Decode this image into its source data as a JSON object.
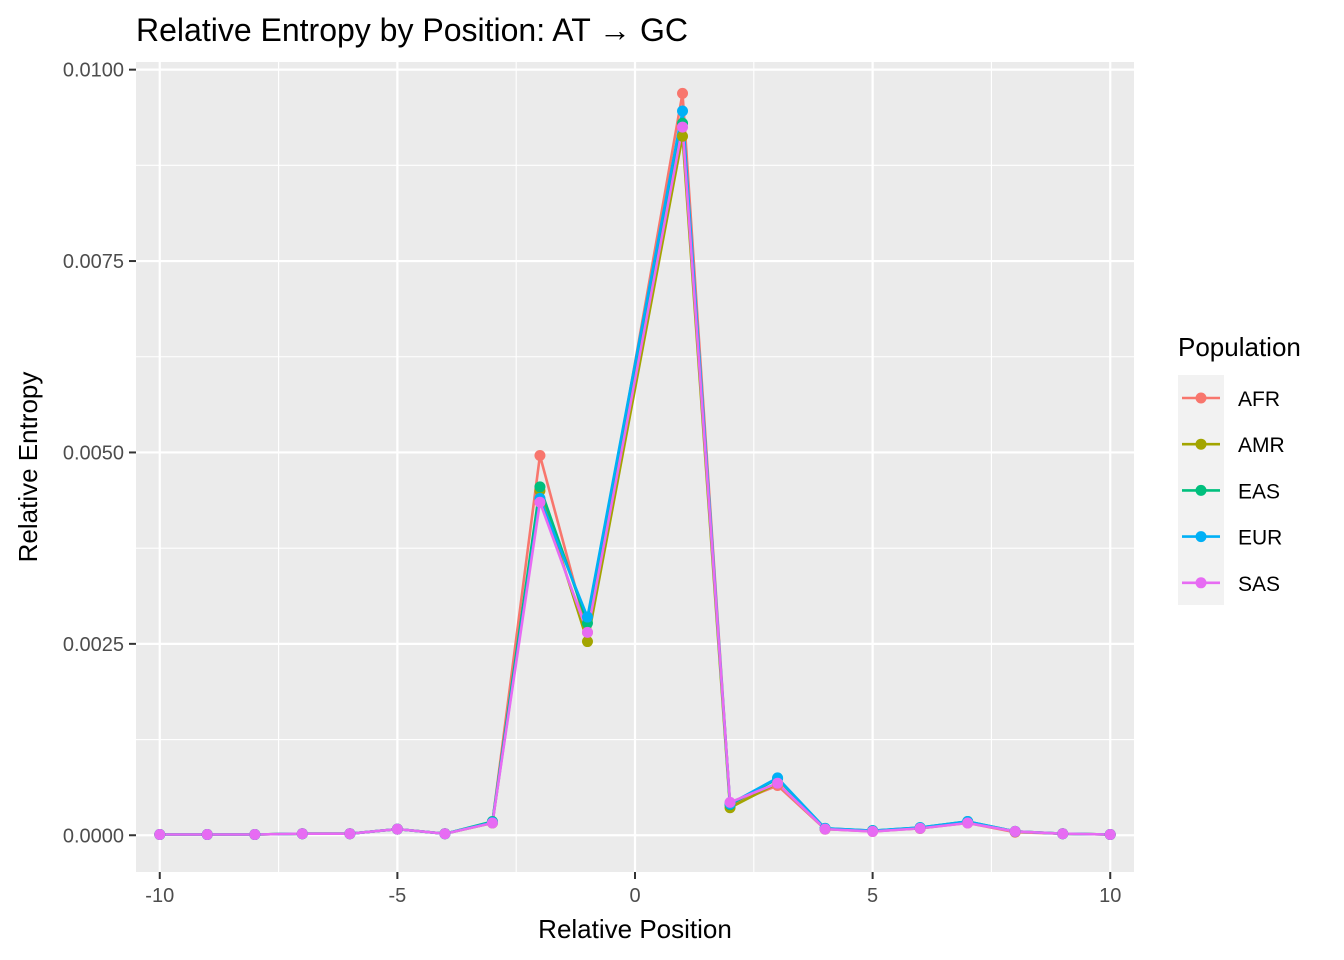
{
  "chart_data": {
    "type": "line",
    "title": "Relative Entropy by Position: AT → GC",
    "xlabel": "Relative Position",
    "ylabel": "Relative Entropy",
    "xlim": [
      -10.5,
      10.5
    ],
    "ylim": [
      -0.00048,
      0.0101
    ],
    "x_ticks": [
      -10,
      -5,
      0,
      5,
      10
    ],
    "x_tick_labels": [
      "-10",
      "-5",
      "0",
      "5",
      "10"
    ],
    "y_ticks": [
      0.0,
      0.0025,
      0.005,
      0.0075,
      0.01
    ],
    "y_tick_labels": [
      "0.0000",
      "0.0025",
      "0.0050",
      "0.0075",
      "0.0100"
    ],
    "grid": true,
    "legend": {
      "title": "Population",
      "placement": "right"
    },
    "x": [
      -10,
      -9,
      -8,
      -7,
      -6,
      -5,
      -4,
      -3,
      -2,
      -1,
      1,
      2,
      3,
      4,
      5,
      6,
      7,
      8,
      9,
      10
    ],
    "series": [
      {
        "name": "AFR",
        "color": "#F8766D",
        "values": [
          1e-05,
          1e-05,
          1e-05,
          2e-05,
          2e-05,
          8e-05,
          2e-05,
          0.00017,
          0.00496,
          0.00265,
          0.00969,
          0.0004,
          0.00065,
          8e-05,
          5e-05,
          9e-05,
          0.00016,
          4e-05,
          2e-05,
          1e-05
        ]
      },
      {
        "name": "AMR",
        "color": "#A3A500",
        "values": [
          1e-05,
          1e-05,
          1e-05,
          2e-05,
          2e-05,
          8e-05,
          2e-05,
          0.00016,
          0.0045,
          0.00253,
          0.00913,
          0.00036,
          0.00068,
          8e-05,
          6e-05,
          9e-05,
          0.00017,
          5e-05,
          2e-05,
          1e-05
        ]
      },
      {
        "name": "EAS",
        "color": "#00BF7D",
        "values": [
          1e-05,
          1e-05,
          1e-05,
          2e-05,
          2e-05,
          8e-05,
          2e-05,
          0.00018,
          0.00455,
          0.00277,
          0.0093,
          0.0004,
          0.00074,
          9e-05,
          6e-05,
          0.0001,
          0.00018,
          5e-05,
          2e-05,
          1e-05
        ]
      },
      {
        "name": "EUR",
        "color": "#00B0F6",
        "values": [
          1e-05,
          1e-05,
          1e-05,
          2e-05,
          2e-05,
          8e-05,
          2e-05,
          0.00017,
          0.0044,
          0.00285,
          0.00946,
          0.00041,
          0.00075,
          9e-05,
          6e-05,
          0.0001,
          0.00018,
          5e-05,
          2e-05,
          1e-05
        ]
      },
      {
        "name": "SAS",
        "color": "#E76BF3",
        "values": [
          1e-05,
          1e-05,
          1e-05,
          2e-05,
          2e-05,
          8e-05,
          2e-05,
          0.00016,
          0.00435,
          0.00265,
          0.00925,
          0.00043,
          0.00068,
          8e-05,
          5e-05,
          9e-05,
          0.00016,
          5e-05,
          2e-05,
          1e-05
        ]
      }
    ]
  }
}
